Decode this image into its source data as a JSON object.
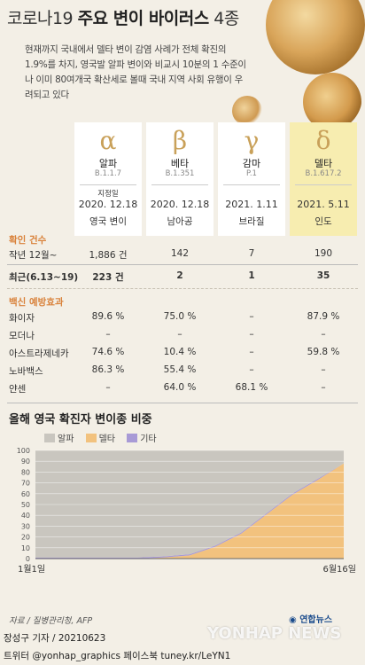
{
  "title": {
    "prefix": "코로나19 ",
    "main": "주요 변이 바이러스",
    "suffix": " 4종"
  },
  "description": "현재까지 국내에서 델타 변이 감염 사례가 전체 확진의 1.9%를 차지, 영국발 알파 변이와 비교시 10분의 1 수준이나 이미 80여개국 확산세로 볼때 국내 지역 사회 유행이 우려되고 있다",
  "variants": [
    {
      "greek": "α",
      "name": "알파",
      "lineage": "B.1.1.7",
      "note": "지정일",
      "date": "2020. 12.18",
      "origin": "영국 변이"
    },
    {
      "greek": "β",
      "name": "베타",
      "lineage": "B.1.351",
      "note": "",
      "date": "2020. 12.18",
      "origin": "남아공"
    },
    {
      "greek": "γ",
      "name": "감마",
      "lineage": "P.1",
      "note": "",
      "date": "2021. 1.11",
      "origin": "브라질"
    },
    {
      "greek": "δ",
      "name": "델타",
      "lineage": "B.1.617.2",
      "note": "",
      "date": "2021. 5.11",
      "origin": "인도"
    }
  ],
  "cases": {
    "section": "확인 건수",
    "rows": [
      {
        "label": "작년 12월~",
        "values": [
          "1,886 건",
          "142",
          "7",
          "190"
        ]
      },
      {
        "label": "최근(6.13~19)",
        "values": [
          "223 건",
          "2",
          "1",
          "35"
        ]
      }
    ]
  },
  "vaccine": {
    "section": "백신 예방효과",
    "rows": [
      {
        "label": "화이자",
        "values": [
          "89.6 %",
          "75.0 %",
          "–",
          "87.9 %"
        ]
      },
      {
        "label": "모더나",
        "values": [
          "–",
          "–",
          "–",
          "–"
        ]
      },
      {
        "label": "아스트라제네카",
        "values": [
          "74.6 %",
          "10.4 %",
          "–",
          "59.8 %"
        ]
      },
      {
        "label": "노바백스",
        "values": [
          "86.3 %",
          "55.4 %",
          "–",
          "–"
        ]
      },
      {
        "label": "얀센",
        "values": [
          "–",
          "64.0 %",
          "68.1 %",
          "–"
        ]
      }
    ]
  },
  "chart_data": {
    "type": "area",
    "title": "올해 영국 확진자 변이종 비중",
    "legend_position": "top",
    "x_start_label": "1월1일",
    "x_end_label": "6월16일",
    "ylim": [
      0,
      100
    ],
    "yticks": [
      0,
      10,
      20,
      30,
      40,
      50,
      60,
      70,
      80,
      90,
      100
    ],
    "grid": true,
    "x": [
      "1/1",
      "1/19",
      "2/6",
      "2/24",
      "3/14",
      "4/1",
      "4/19",
      "5/7",
      "5/16",
      "5/25",
      "6/3",
      "6/10",
      "6/16"
    ],
    "series": [
      {
        "name": "알파",
        "color": "#c9c6bf",
        "values": [
          99,
          99,
          99,
          99,
          99,
          98,
          96,
          88,
          76,
          58,
          40,
          26,
          12
        ]
      },
      {
        "name": "델타",
        "color": "#f2c27e",
        "values": [
          0,
          0,
          0,
          0,
          0,
          1,
          3,
          11,
          23,
          41,
          59,
          73,
          88
        ]
      },
      {
        "name": "기타",
        "color": "#a89ad6",
        "values": [
          1,
          1,
          1,
          1,
          1,
          1,
          1,
          1,
          1,
          1,
          1,
          1,
          0
        ]
      }
    ]
  },
  "source": "자료 / 질병관리청, AFP",
  "logo": "연합뉴스",
  "watermark": "YONHAP NEWS",
  "byline": "장성구 기자 / 20210623",
  "footer": "트위터 @yonhap_graphics  페이스북 tuney.kr/LeYN1"
}
